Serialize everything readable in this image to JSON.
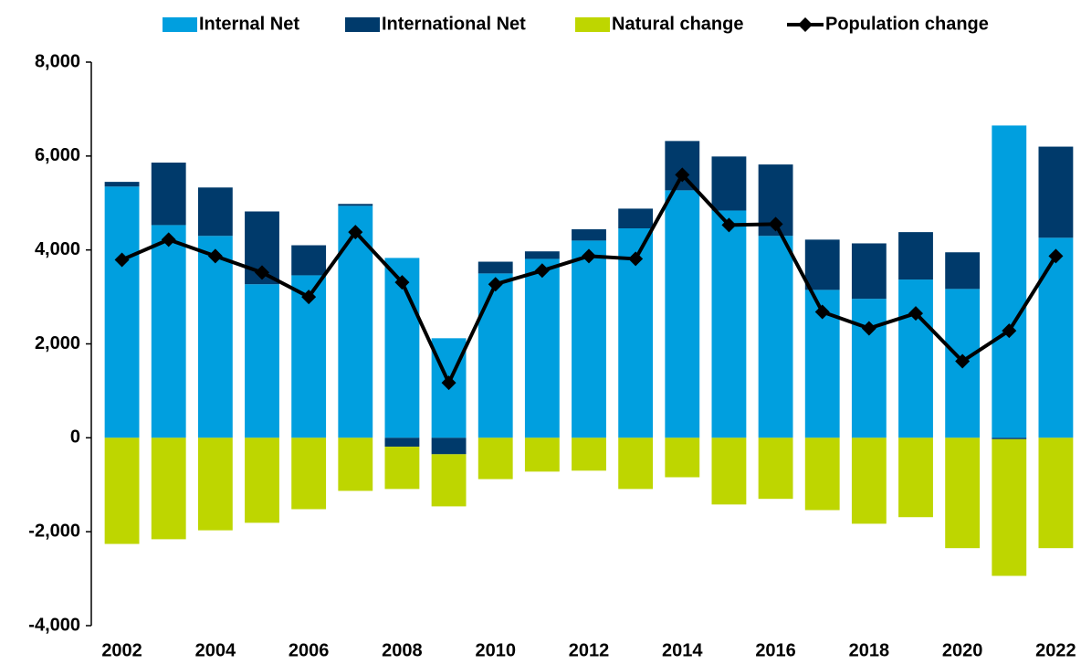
{
  "chart_data": {
    "type": "bar",
    "categories": [
      "2002",
      null,
      "2004",
      null,
      "2006",
      null,
      "2008",
      null,
      "2010",
      null,
      "2012",
      null,
      "2014",
      null,
      "2016",
      null,
      "2018",
      null,
      "2020",
      null,
      "2022"
    ],
    "series": [
      {
        "name": "Internal Net",
        "color": "#009fdf",
        "values": [
          5350,
          4530,
          4300,
          3270,
          3460,
          4940,
          3830,
          2120,
          3500,
          3810,
          4200,
          4460,
          5270,
          4840,
          4300,
          3150,
          2960,
          3370,
          3170,
          6650,
          4260
        ]
      },
      {
        "name": "International Net",
        "color": "#003a6b",
        "values": [
          100,
          1330,
          1030,
          1550,
          640,
          40,
          -190,
          -350,
          250,
          160,
          240,
          420,
          1050,
          1150,
          1520,
          1070,
          1180,
          1010,
          780,
          -30,
          1940
        ]
      },
      {
        "name": "Natural change",
        "color": "#bed600",
        "values": [
          -2260,
          -2160,
          -1970,
          -1810,
          -1520,
          -1130,
          -900,
          -1110,
          -880,
          -720,
          -700,
          -1090,
          -840,
          -1420,
          -1300,
          -1540,
          -1830,
          -1690,
          -2350,
          -2910,
          -2350
        ]
      },
      {
        "name": "Population change",
        "type": "line",
        "color": "#000000",
        "values": [
          3790,
          4220,
          3870,
          3520,
          3000,
          4380,
          3310,
          1170,
          3270,
          3560,
          3870,
          3810,
          5600,
          4530,
          4550,
          2680,
          2330,
          2650,
          1630,
          2280,
          3870
        ]
      }
    ],
    "ylim": [
      -4000,
      8000
    ],
    "yticks": [
      {
        "value": -4000,
        "label": "-4,000"
      },
      {
        "value": -2000,
        "label": "-2,000"
      },
      0,
      {
        "value": 2000,
        "label": "2,000"
      },
      {
        "value": 4000,
        "label": "4,000"
      },
      {
        "value": 6000,
        "label": "6,000"
      },
      {
        "value": 8000,
        "label": "8,000"
      }
    ],
    "grid": false,
    "legend": "top"
  }
}
